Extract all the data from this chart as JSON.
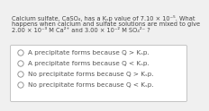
{
  "title_lines": [
    "Calcium sulfate, CaSO₄, has a Kₛp value of 7.10 × 10⁻⁵. What",
    "happens when calcium and sulfate solutions are mixed to give",
    "2.00 × 10⁻³ M Ca²⁺ and 3.00 × 10⁻² M SO₄²⁻ ?"
  ],
  "choices": [
    "A precipitate forms because Q > Kₛp.",
    "A precipitate forms because Q < Kₛp.",
    "No precipitate forms because Q > Kₛp.",
    "No precipitate forms because Q < Kₛp."
  ],
  "bg_color": "#f0f0f0",
  "box_color": "#ffffff",
  "text_color": "#444444",
  "choice_text_color": "#555555",
  "title_font_size": 4.8,
  "choice_font_size": 5.2,
  "box_edge_color": "#bbbbbb",
  "circle_edge_color": "#888888"
}
